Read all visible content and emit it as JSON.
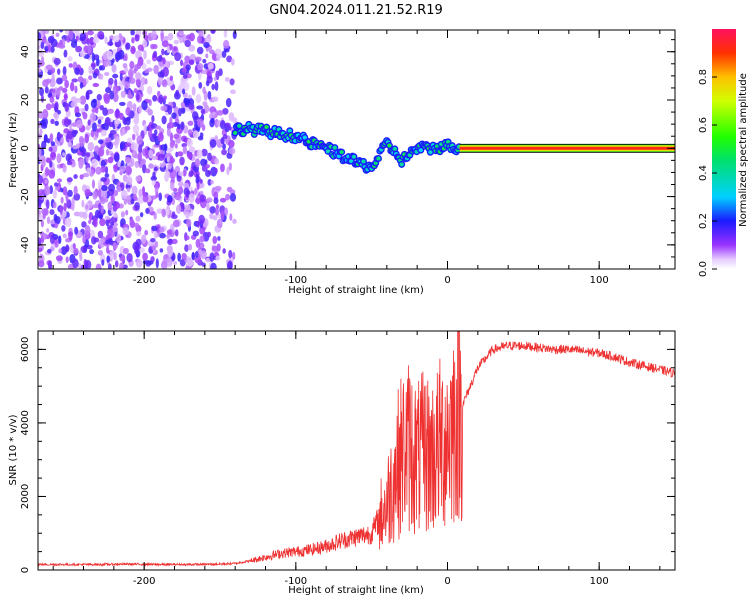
{
  "title": "GN04.2024.011.21.52.R19",
  "chart_data": [
    {
      "type": "heatmap",
      "xlabel": "Height of straight line (km)",
      "ylabel": "Frequency (Hz)",
      "xlim": [
        -270,
        150
      ],
      "ylim": [
        -50,
        49
      ],
      "xticks": [
        -200,
        -100,
        0,
        100
      ],
      "yticks": [
        -40,
        -20,
        0,
        20,
        40
      ],
      "colorbar": {
        "label": "Normalized spectral amplitude",
        "range": [
          0.0,
          1.0
        ],
        "ticks": [
          0.0,
          0.2,
          0.4,
          0.6,
          0.8
        ]
      },
      "ridge": {
        "x": [
          -140,
          -130,
          -120,
          -110,
          -100,
          -90,
          -80,
          -70,
          -60,
          -50,
          -40,
          -30,
          -20,
          -10,
          0,
          10,
          50,
          100,
          150
        ],
        "frequency": [
          8,
          8,
          7,
          6,
          5,
          2,
          0,
          -3,
          -6,
          -8,
          2,
          -5,
          0,
          0,
          1,
          0,
          0,
          0,
          0
        ]
      }
    },
    {
      "type": "line",
      "xlabel": "Height of straight line (km)",
      "ylabel": "SNR (10 * v/v)",
      "xlim": [
        -270,
        150
      ],
      "ylim": [
        0,
        6500
      ],
      "xticks": [
        -200,
        -100,
        0,
        100
      ],
      "yticks": [
        0,
        2000,
        4000,
        6000
      ],
      "color": "#ee3030",
      "series": [
        {
          "x": [
            -270,
            -250,
            -230,
            -210,
            -190,
            -170,
            -150,
            -140,
            -130,
            -120,
            -110,
            -100,
            -90,
            -80,
            -70,
            -60,
            -50,
            -45,
            -40,
            -35,
            -30,
            -25,
            -20,
            -15,
            -10,
            -5,
            0,
            10,
            20,
            30,
            40,
            50,
            60,
            70,
            80,
            90,
            100,
            110,
            120,
            130,
            140,
            150
          ],
          "y": [
            150,
            150,
            150,
            160,
            150,
            150,
            160,
            180,
            250,
            350,
            450,
            500,
            550,
            650,
            800,
            900,
            1000,
            1400,
            1800,
            2600,
            3200,
            3400,
            3000,
            3200,
            3100,
            3400,
            3700,
            4500,
            5500,
            6000,
            6100,
            6100,
            6050,
            6000,
            6000,
            5950,
            5900,
            5800,
            5650,
            5550,
            5450,
            5350
          ]
        }
      ]
    }
  ]
}
